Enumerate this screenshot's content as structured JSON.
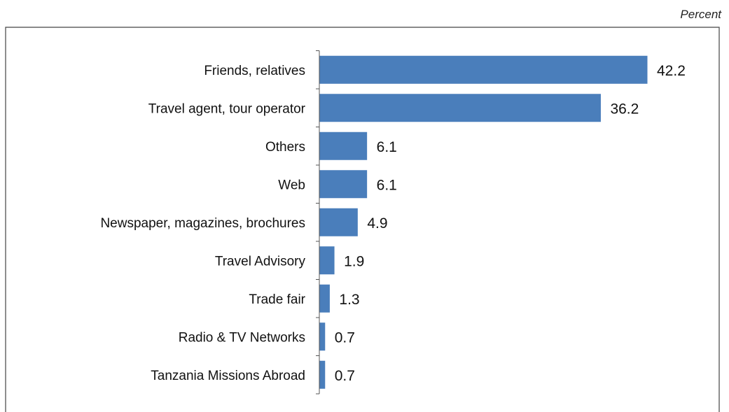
{
  "unit_label": "Percent",
  "colors": {
    "bar": "#4a7ebb",
    "axis": "#555555",
    "frame": "#444444"
  },
  "chart_data": {
    "type": "bar",
    "orientation": "horizontal",
    "categories": [
      "Friends, relatives",
      "Travel agent, tour operator",
      "Others",
      "Web",
      "Newspaper, magazines, brochures",
      "Travel Advisory",
      "Trade fair",
      "Radio & TV Networks",
      "Tanzania Missions Abroad"
    ],
    "values": [
      42.2,
      36.2,
      6.1,
      6.1,
      4.9,
      1.9,
      1.3,
      0.7,
      0.7
    ],
    "value_labels": [
      "42.2",
      "36.2",
      "6.1",
      "6.1",
      "4.9",
      "1.9",
      "1.3",
      "0.7",
      "0.7"
    ],
    "xlim": [
      0,
      42.2
    ],
    "grid": false,
    "legend": "none"
  }
}
